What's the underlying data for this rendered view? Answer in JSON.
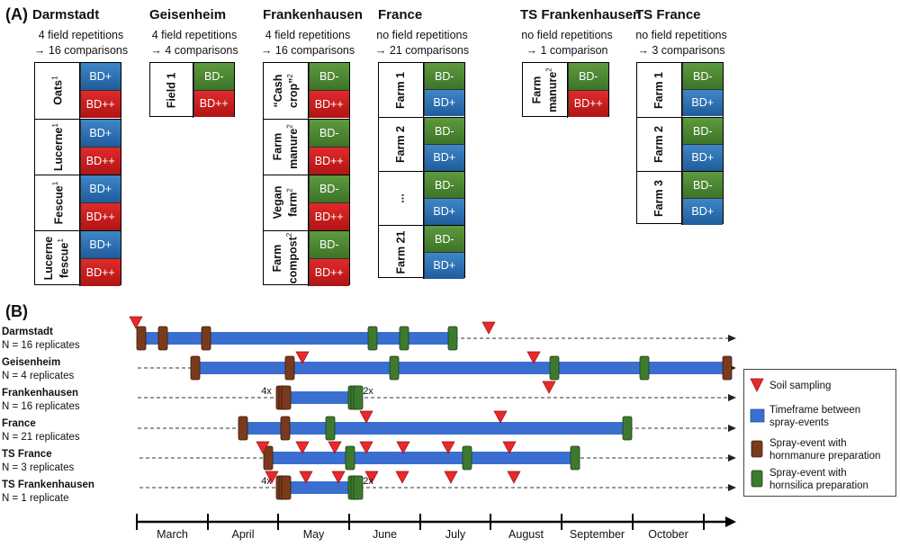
{
  "panel_a": {
    "label": "(A)",
    "sites": [
      {
        "id": "darmstadt",
        "title": "Darmstadt",
        "line1": "4 field repetitions",
        "line2": "→ 16 comparisons",
        "rows": [
          {
            "label": "Oats",
            "sup": "1",
            "treatments": [
              "BD+",
              "BD++"
            ]
          },
          {
            "label": "Lucerne",
            "sup": "1",
            "treatments": [
              "BD+",
              "BD++"
            ]
          },
          {
            "label": "Fescue",
            "sup": "1",
            "treatments": [
              "BD+",
              "BD++"
            ]
          },
          {
            "label": "Lucerne\nfescue",
            "sup": "1",
            "treatments": [
              "BD+",
              "BD++"
            ]
          }
        ]
      },
      {
        "id": "geisenheim",
        "title": "Geisenheim",
        "line1": "4 field repetitions",
        "line2": "→ 4 comparisons",
        "rows": [
          {
            "label": "Field 1",
            "sup": "",
            "treatments": [
              "BD-",
              "BD++"
            ]
          }
        ]
      },
      {
        "id": "frankenhausen",
        "title": "Frankenhausen",
        "line1": "4 field repetitions",
        "line2": "→ 16 comparisons",
        "rows": [
          {
            "label": "“Cash\ncrop”",
            "sup": "2",
            "treatments": [
              "BD-",
              "BD++"
            ]
          },
          {
            "label": "Farm\nmanure",
            "sup": "2",
            "treatments": [
              "BD-",
              "BD++"
            ]
          },
          {
            "label": "Vegan\nfarm",
            "sup": "2",
            "treatments": [
              "BD-",
              "BD++"
            ]
          },
          {
            "label": "Farm\ncompost",
            "sup": "2",
            "treatments": [
              "BD-",
              "BD++"
            ]
          }
        ]
      },
      {
        "id": "france",
        "title": "France",
        "line1": "no field repetitions",
        "line2": "→ 21 comparisons",
        "rows": [
          {
            "label": "Farm 1",
            "sup": "",
            "treatments": [
              "BD-",
              "BD+"
            ]
          },
          {
            "label": "Farm 2",
            "sup": "",
            "treatments": [
              "BD-",
              "BD+"
            ]
          },
          {
            "label": "...",
            "sup": "",
            "treatments": [
              "BD-",
              "BD+"
            ]
          },
          {
            "label": "Farm 21",
            "sup": "",
            "treatments": [
              "BD-",
              "BD+"
            ]
          }
        ]
      },
      {
        "id": "ts-frankenhausen",
        "title": "TS Frankenhausen",
        "line1": "no field repetitions",
        "line2": "→ 1 comparison",
        "rows": [
          {
            "label": "Farm\nmanure",
            "sup": "2",
            "treatments": [
              "BD-",
              "BD++"
            ]
          }
        ]
      },
      {
        "id": "ts-france",
        "title": "TS France",
        "line1": "no field repetitions",
        "line2": "→ 3 comparisons",
        "rows": [
          {
            "label": "Farm 1",
            "sup": "",
            "treatments": [
              "BD-",
              "BD+"
            ]
          },
          {
            "label": "Farm 2",
            "sup": "",
            "treatments": [
              "BD-",
              "BD+"
            ]
          },
          {
            "label": "Farm 3",
            "sup": "",
            "treatments": [
              "BD-",
              "BD+"
            ]
          }
        ]
      }
    ]
  },
  "panel_b": {
    "label": "(B)",
    "colors": {
      "timeframe": "#3a6fd0",
      "hornmanure": "#7a3b1c",
      "hornsilica": "#3d7a2e",
      "soil_sampling": "#e8282c"
    },
    "months": [
      "March",
      "April",
      "May",
      "June",
      "July",
      "August",
      "September",
      "October"
    ],
    "rows": [
      {
        "id": "darmstadt",
        "name": "Darmstadt",
        "replicates": "N = 16 replicates",
        "multi_labels": []
      },
      {
        "id": "geisenheim",
        "name": "Geisenheim",
        "replicates": "N = 4 replicates",
        "multi_labels": []
      },
      {
        "id": "frankenhausen",
        "name": "Frankenhausen",
        "replicates": "N = 16 replicates",
        "multi_labels": [
          "4x",
          "2x"
        ]
      },
      {
        "id": "france",
        "name": "France",
        "replicates": "N = 21 replicates",
        "multi_labels": []
      },
      {
        "id": "ts-france",
        "name": "TS France",
        "replicates": "N = 3 replicates",
        "multi_labels": []
      },
      {
        "id": "ts-frankenhausen",
        "name": "TS Frankenhausen",
        "replicates": "N = 1 replicate",
        "multi_labels": [
          "4x",
          "2x"
        ]
      }
    ],
    "legend": {
      "soil_sampling": "Soil sampling",
      "timeframe_1": "Timeframe between",
      "timeframe_2": "spray-events",
      "hornmanure_1": "Spray-event with",
      "hornmanure_2": "hornmanure preparation",
      "hornsilica_1": "Spray-event with",
      "hornsilica_2": "hornsilica preparation"
    }
  }
}
